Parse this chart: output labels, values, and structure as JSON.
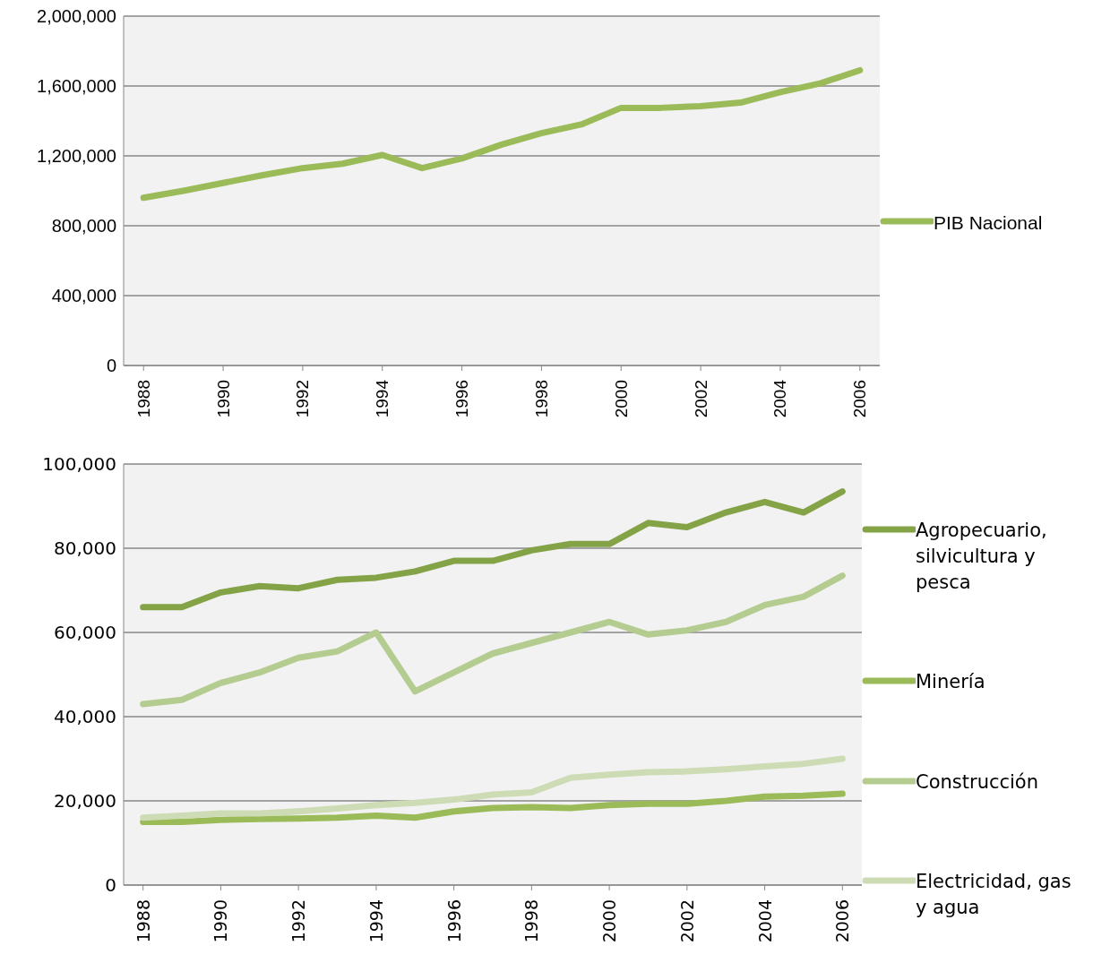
{
  "chart_data": [
    {
      "type": "line",
      "x": [
        1988,
        1989,
        1990,
        1991,
        1992,
        1993,
        1994,
        1995,
        1996,
        1997,
        1998,
        1999,
        2000,
        2001,
        2002,
        2003,
        2004,
        2005,
        2006
      ],
      "series": [
        {
          "name": "PIB Nacional",
          "color": "#9bbb59",
          "values": [
            960000,
            1000000,
            1045000,
            1090000,
            1130000,
            1155000,
            1205000,
            1130000,
            1185000,
            1265000,
            1330000,
            1380000,
            1475000,
            1475000,
            1485000,
            1505000,
            1565000,
            1615000,
            1690000
          ]
        }
      ],
      "xlim": [
        1987.5,
        2006.5
      ],
      "xticks": [
        1988,
        1990,
        1992,
        1994,
        1996,
        1998,
        2000,
        2002,
        2004,
        2006
      ],
      "ylim": [
        0,
        2000000
      ],
      "yticks": [
        0,
        {
          "value": 400000,
          "label": "400,000"
        },
        {
          "value": 800000,
          "label": "800,000"
        },
        {
          "value": 1200000,
          "label": "1,200,000"
        },
        {
          "value": 1600000,
          "label": "1,600,000"
        },
        {
          "value": 2000000,
          "label": "2,000,000"
        }
      ],
      "grid": "y",
      "legend": "right",
      "marker": "none",
      "line_style": "solid"
    },
    {
      "type": "line",
      "x": [
        1988,
        1989,
        1990,
        1991,
        1992,
        1993,
        1994,
        1995,
        1996,
        1997,
        1998,
        1999,
        2000,
        2001,
        2002,
        2003,
        2004,
        2005,
        2006
      ],
      "series": [
        {
          "name": "Agropecuario, silvicultura y pesca",
          "color": "#84a347",
          "values": [
            66000,
            66000,
            69500,
            71000,
            70500,
            72500,
            73000,
            74500,
            77000,
            77000,
            79500,
            81000,
            81000,
            86000,
            85000,
            88500,
            91000,
            88500,
            93500
          ]
        },
        {
          "name": "Minería",
          "color": "#9bbb59",
          "values": [
            15000,
            15000,
            15500,
            15700,
            15800,
            16000,
            16500,
            16000,
            17500,
            18300,
            18500,
            18300,
            19000,
            19300,
            19300,
            20000,
            21000,
            21200,
            21700
          ]
        },
        {
          "name": "Construcción",
          "color": "#b4cc8f",
          "values": [
            43000,
            44000,
            48000,
            50500,
            54000,
            55500,
            60000,
            46000,
            50500,
            55000,
            57500,
            60000,
            62500,
            59500,
            60500,
            62500,
            66500,
            68500,
            73500
          ]
        },
        {
          "name": "Electricidad, gas y agua",
          "color": "#cddcb5",
          "values": [
            16000,
            16500,
            17000,
            17000,
            17500,
            18200,
            19000,
            19500,
            20300,
            21500,
            22000,
            25500,
            26200,
            26800,
            27000,
            27500,
            28200,
            28800,
            30000
          ]
        }
      ],
      "xlim": [
        1987.5,
        2006.5
      ],
      "xticks": [
        1988,
        1990,
        1992,
        1994,
        1996,
        1998,
        2000,
        2002,
        2004,
        2006
      ],
      "ylim": [
        0,
        100000
      ],
      "yticks": [
        0,
        {
          "value": 20000,
          "label": "20,000"
        },
        {
          "value": 40000,
          "label": "40,000"
        },
        {
          "value": 60000,
          "label": "60,000"
        },
        {
          "value": 80000,
          "label": "80,000"
        },
        {
          "value": 100000,
          "label": "100,000"
        }
      ],
      "grid": "y",
      "legend": "right",
      "marker": "none",
      "line_style": "solid"
    }
  ]
}
